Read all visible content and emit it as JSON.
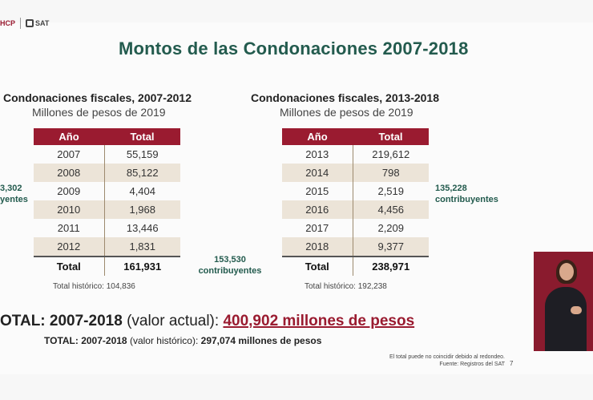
{
  "logos": {
    "hcp": "HCP",
    "sat": "SAT"
  },
  "title": "Montos de las Condonaciones 2007-2018",
  "left_table": {
    "title": "Condonaciones fiscales, 2007-2012",
    "subtitle": "Millones de pesos de 2019",
    "headers": [
      "Año",
      "Total"
    ],
    "rows": [
      {
        "year": "2007",
        "total": "55,159"
      },
      {
        "year": "2008",
        "total": "85,122"
      },
      {
        "year": "2009",
        "total": "4,404"
      },
      {
        "year": "2010",
        "total": "1,968"
      },
      {
        "year": "2011",
        "total": "13,446"
      },
      {
        "year": "2012",
        "total": "1,831"
      }
    ],
    "total_label": "Total",
    "total_value": "161,931",
    "historic": "Total histórico: 104,836",
    "contrib_left_num": "3,302",
    "contrib_left_label": "yentes"
  },
  "right_table": {
    "title": "Condonaciones fiscales, 2013-2018",
    "subtitle": "Millones de pesos de 2019",
    "headers": [
      "Año",
      "Total"
    ],
    "rows": [
      {
        "year": "2013",
        "total": "219,612"
      },
      {
        "year": "2014",
        "total": "798"
      },
      {
        "year": "2015",
        "total": "2,519"
      },
      {
        "year": "2016",
        "total": "4,456"
      },
      {
        "year": "2017",
        "total": "2,209"
      },
      {
        "year": "2018",
        "total": "9,377"
      }
    ],
    "total_label": "Total",
    "total_value": "238,971",
    "historic": "Total histórico: 192,238"
  },
  "contrib_middle": {
    "number": "153,530",
    "label": "contribuyentes"
  },
  "contrib_right": {
    "number": "135,228",
    "label": "contribuyentes"
  },
  "totals": {
    "line1_prefix": "OTAL: 2007-2018",
    "line1_paren": "(valor actual):",
    "line1_amount": "400,902 millones de pesos",
    "line2_prefix": "TOTAL: 2007-2018",
    "line2_paren": "(valor histórico):",
    "line2_amount": "297,074 millones de pesos"
  },
  "notes": {
    "rounding": "El total puede no coincidir debido al redondeo.",
    "source": "Fuente: Registros del SAT",
    "page": "7"
  },
  "colors": {
    "accent_green": "#235b4e",
    "accent_red": "#9a1b30",
    "row_alt": "#ece4d8"
  }
}
